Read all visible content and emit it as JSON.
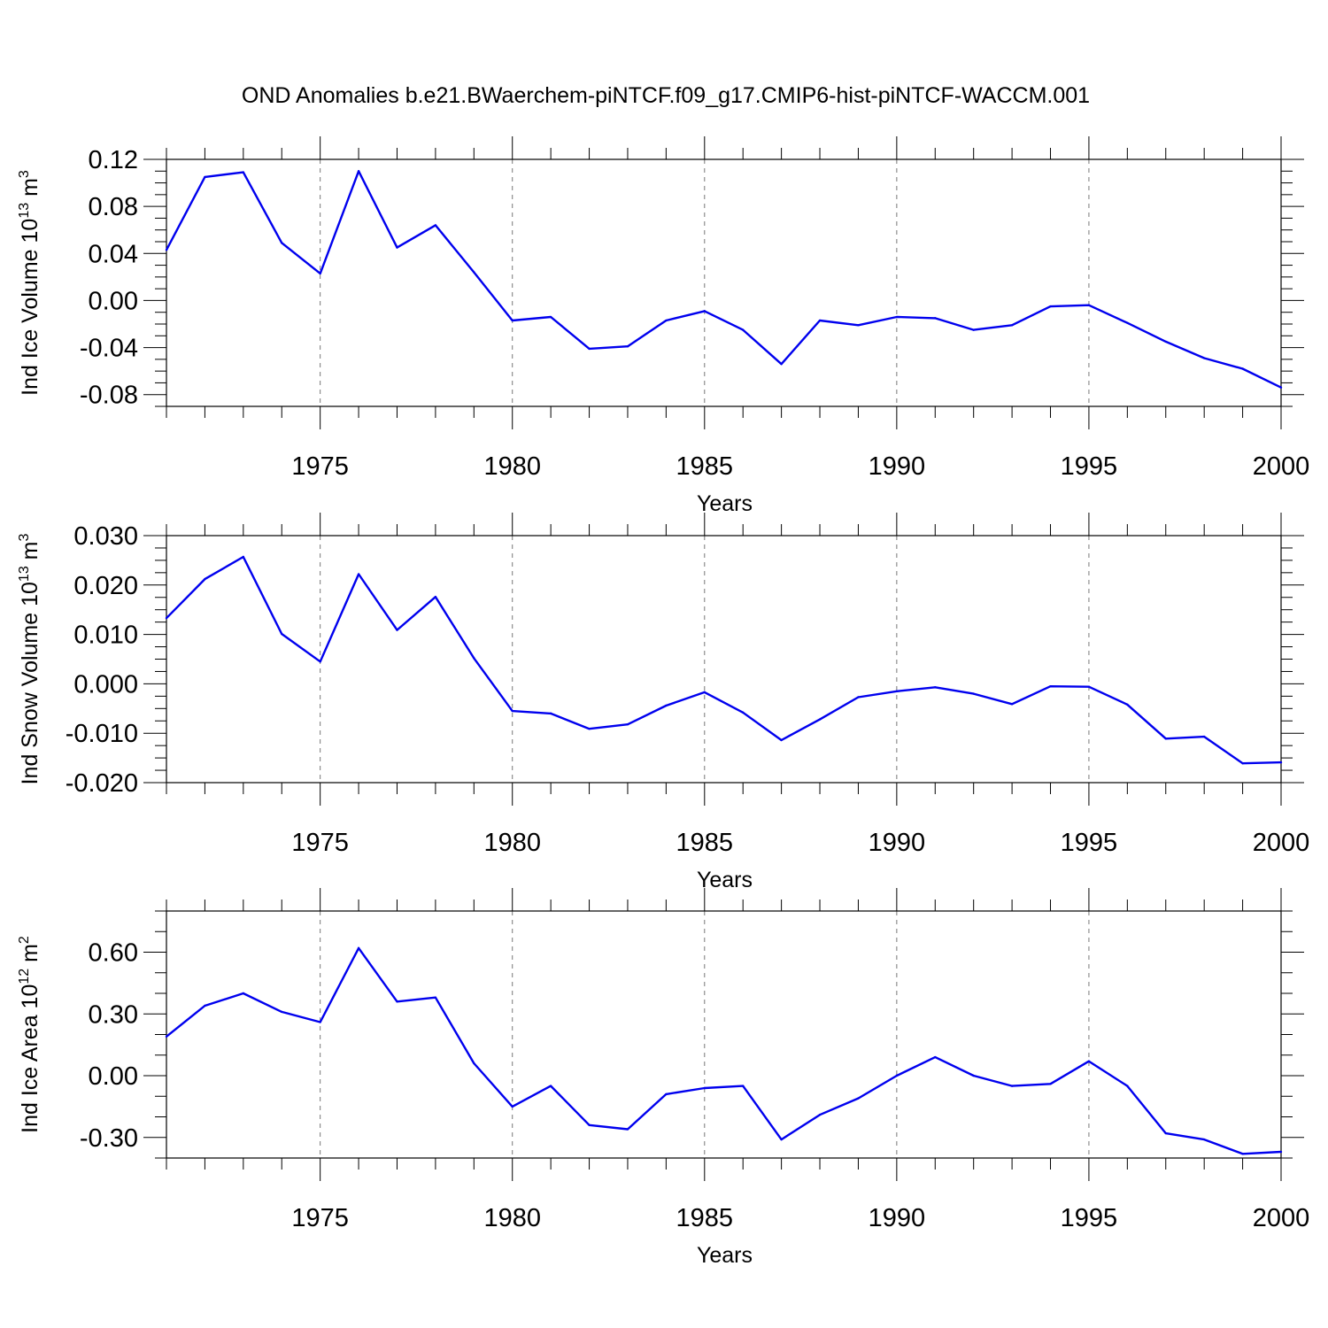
{
  "chart_data": [
    {
      "type": "line",
      "title": "OND Anomalies b.e21.BWaerchem-piNTCF.f09_g17.CMIP6-hist-piNTCF-WACCM.001",
      "ylabel": {
        "prefix": "Ind Ice Volume 10",
        "exp": "13",
        "unit": " m",
        "unit_exp": "3"
      },
      "xlabel": "Years",
      "xlim": [
        1971,
        2000
      ],
      "ylim": [
        -0.09,
        0.12
      ],
      "yticks": [
        0.12,
        0.08,
        0.04,
        0.0,
        -0.04,
        -0.08
      ],
      "ytick_labels": [
        "0.12",
        "0.08",
        "0.04",
        "0.00",
        "-0.04",
        "-0.08"
      ],
      "yminor": 0.01,
      "xticks": [
        1975,
        1980,
        1985,
        1990,
        1995,
        2000
      ],
      "xtick_labels": [
        "1975",
        "1980",
        "1985",
        "1990",
        "1995",
        "2000"
      ],
      "grid_x": true,
      "color": "#0000ee",
      "x": [
        1971,
        1972,
        1973,
        1974,
        1975,
        1976,
        1977,
        1978,
        1979,
        1980,
        1981,
        1982,
        1983,
        1984,
        1985,
        1986,
        1987,
        1988,
        1989,
        1990,
        1991,
        1992,
        1993,
        1994,
        1995,
        1996,
        1997,
        1998,
        1999,
        2000
      ],
      "values": [
        0.043,
        0.105,
        0.109,
        0.049,
        0.023,
        0.11,
        0.045,
        0.064,
        0.024,
        -0.017,
        -0.014,
        -0.041,
        -0.039,
        -0.017,
        -0.009,
        -0.025,
        -0.054,
        -0.017,
        -0.021,
        -0.014,
        -0.015,
        -0.025,
        -0.021,
        -0.005,
        -0.004,
        -0.019,
        -0.035,
        -0.049,
        -0.058,
        -0.074
      ]
    },
    {
      "type": "line",
      "ylabel": {
        "prefix": "Ind Snow Volume 10",
        "exp": "13",
        "unit": " m",
        "unit_exp": "3"
      },
      "xlabel": "Years",
      "xlim": [
        1971,
        2000
      ],
      "ylim": [
        -0.02,
        0.03
      ],
      "yticks": [
        0.03,
        0.02,
        0.01,
        0.0,
        -0.01,
        -0.02
      ],
      "ytick_labels": [
        "0.030",
        "0.020",
        "0.010",
        "0.000",
        "-0.010",
        "-0.020"
      ],
      "yminor": 0.0025,
      "xticks": [
        1975,
        1980,
        1985,
        1990,
        1995,
        2000
      ],
      "xtick_labels": [
        "1975",
        "1980",
        "1985",
        "1990",
        "1995",
        "2000"
      ],
      "grid_x": true,
      "color": "#0000ee",
      "x": [
        1971,
        1972,
        1973,
        1974,
        1975,
        1976,
        1977,
        1978,
        1979,
        1980,
        1981,
        1982,
        1983,
        1984,
        1985,
        1986,
        1987,
        1988,
        1989,
        1990,
        1991,
        1992,
        1993,
        1994,
        1995,
        1996,
        1997,
        1998,
        1999,
        2000
      ],
      "values": [
        0.0133,
        0.0212,
        0.0257,
        0.0101,
        0.0045,
        0.0222,
        0.0109,
        0.0176,
        0.0052,
        -0.0055,
        -0.006,
        -0.0091,
        -0.0082,
        -0.0044,
        -0.0017,
        -0.0058,
        -0.0114,
        -0.0072,
        -0.0027,
        -0.0015,
        -0.0007,
        -0.002,
        -0.0041,
        -0.0005,
        -0.0006,
        -0.0042,
        -0.0111,
        -0.0107,
        -0.0161,
        -0.0159
      ]
    },
    {
      "type": "line",
      "ylabel": {
        "prefix": "Ind Ice Area 10",
        "exp": "12",
        "unit": " m",
        "unit_exp": "2"
      },
      "xlabel": "Years",
      "xlim": [
        1971,
        2000
      ],
      "ylim": [
        -0.4,
        0.8
      ],
      "yticks": [
        0.6,
        0.3,
        0.0,
        -0.3
      ],
      "ytick_labels": [
        "0.60",
        "0.30",
        "0.00",
        "-0.30"
      ],
      "yminor": 0.1,
      "xticks": [
        1975,
        1980,
        1985,
        1990,
        1995,
        2000
      ],
      "xtick_labels": [
        "1975",
        "1980",
        "1985",
        "1990",
        "1995",
        "2000"
      ],
      "grid_x": true,
      "color": "#0000ee",
      "x": [
        1971,
        1972,
        1973,
        1974,
        1975,
        1976,
        1977,
        1978,
        1979,
        1980,
        1981,
        1982,
        1983,
        1984,
        1985,
        1986,
        1987,
        1988,
        1989,
        1990,
        1991,
        1992,
        1993,
        1994,
        1995,
        1996,
        1997,
        1998,
        1999,
        2000
      ],
      "values": [
        0.19,
        0.34,
        0.4,
        0.31,
        0.26,
        0.62,
        0.36,
        0.38,
        0.06,
        -0.15,
        -0.05,
        -0.24,
        -0.26,
        -0.09,
        -0.06,
        -0.05,
        -0.31,
        -0.19,
        -0.11,
        0.0,
        0.09,
        0.0,
        -0.05,
        -0.04,
        0.07,
        -0.05,
        -0.28,
        -0.31,
        -0.38,
        -0.37
      ]
    }
  ]
}
